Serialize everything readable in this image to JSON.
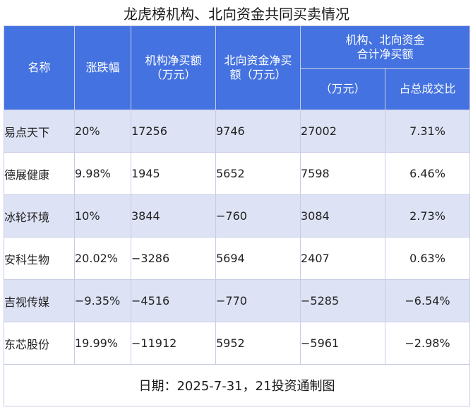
{
  "title": "龙虎榜机构、北向资金共同买卖情况",
  "headers": {
    "name": "名称",
    "change": "涨跌幅",
    "inst_line1": "机构净买额",
    "inst_line2": "（万元）",
    "north_line1": "北向资金净买",
    "north_line2": "额（万元）",
    "combined_line1": "机构、北向资金",
    "combined_line2": "合计净买额",
    "combined_sub_amount": "（万元）",
    "combined_sub_ratio": "占总成交比"
  },
  "rows": [
    {
      "name": "易点天下",
      "change": "20%",
      "inst": "17256",
      "north": "9746",
      "total": "27002",
      "ratio": "7.31%"
    },
    {
      "name": "德展健康",
      "change": "9.98%",
      "inst": "1945",
      "north": "5652",
      "total": "7598",
      "ratio": "6.46%"
    },
    {
      "name": "冰轮环境",
      "change": "10%",
      "inst": "3844",
      "north": "−760",
      "total": "3084",
      "ratio": "2.73%"
    },
    {
      "name": "安科生物",
      "change": "20.02%",
      "inst": "−3286",
      "north": "5694",
      "total": "2407",
      "ratio": "0.63%"
    },
    {
      "name": "吉视传媒",
      "change": "−9.35%",
      "inst": "−4516",
      "north": "−770",
      "total": "−5285",
      "ratio": "−6.54%"
    },
    {
      "name": "东芯股份",
      "change": "19.99%",
      "inst": "−11912",
      "north": "5952",
      "total": "−5961",
      "ratio": "−2.98%"
    }
  ],
  "footer": "日期：2025-7-31，21投资通制图",
  "colors": {
    "header_bg": "#4472e0",
    "stripe_bg": "#dde2f5"
  }
}
